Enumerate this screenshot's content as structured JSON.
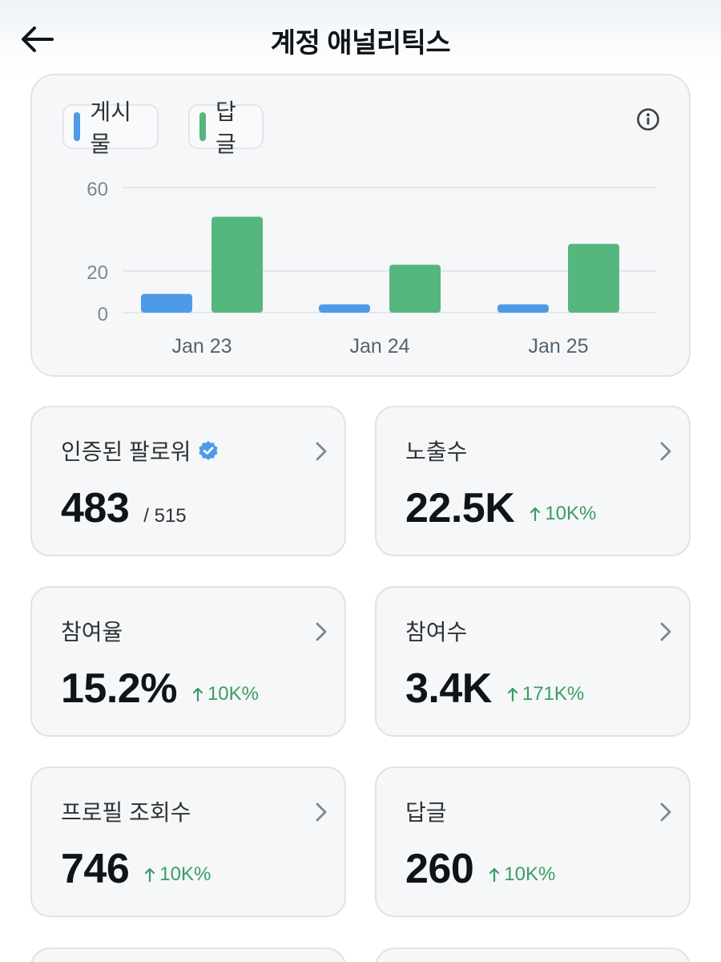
{
  "header": {
    "title": "계정 애널리틱스",
    "back_icon": "arrow-left-icon"
  },
  "legend": [
    {
      "label": "게시물",
      "color": "#4d9be8"
    },
    {
      "label": "답글",
      "color": "#55b77e"
    }
  ],
  "chart_data": {
    "type": "bar",
    "categories": [
      "Jan 23",
      "Jan 24",
      "Jan 25"
    ],
    "series": [
      {
        "name": "게시물",
        "color": "#4d9be8",
        "values": [
          9,
          4,
          4
        ]
      },
      {
        "name": "답글",
        "color": "#55b77e",
        "values": [
          46,
          23,
          33
        ]
      }
    ],
    "yticks": [
      0,
      20,
      60
    ],
    "ylim": [
      0,
      60
    ],
    "grid": true,
    "legend_position": "top-left"
  },
  "stats": [
    {
      "label": "인증된 팔로워",
      "value": "483",
      "sub": "/ 515",
      "change": "",
      "verified": true
    },
    {
      "label": "노출수",
      "value": "22.5K",
      "sub": "",
      "change": "10K%",
      "verified": false
    },
    {
      "label": "참여율",
      "value": "15.2%",
      "sub": "",
      "change": "10K%",
      "verified": false
    },
    {
      "label": "참여수",
      "value": "3.4K",
      "sub": "",
      "change": "171K%",
      "verified": false
    },
    {
      "label": "프로필 조회수",
      "value": "746",
      "sub": "",
      "change": "10K%",
      "verified": false
    },
    {
      "label": "답글",
      "value": "260",
      "sub": "",
      "change": "10K%",
      "verified": false
    }
  ],
  "colors": {
    "posts": "#4d9be8",
    "replies": "#55b77e",
    "positive_change": "#3a9d64",
    "verified_badge": "#4d9be8"
  }
}
